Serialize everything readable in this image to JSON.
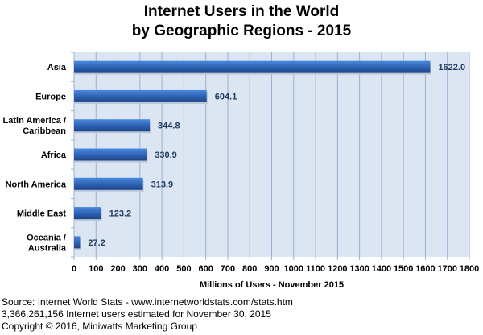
{
  "chart_data": {
    "type": "bar",
    "orientation": "horizontal",
    "title": "Internet Users in the World",
    "subtitle": "by Geographic Regions - 2015",
    "categories": [
      "Asia",
      "Europe",
      "Latin America / Caribbean",
      "Africa",
      "North America",
      "Middle East",
      "Oceania  / Australia"
    ],
    "category_lines": [
      [
        "Asia"
      ],
      [
        "Europe"
      ],
      [
        "Latin America /",
        "Caribbean"
      ],
      [
        "Africa"
      ],
      [
        "North America"
      ],
      [
        "Middle East"
      ],
      [
        "Oceania  /",
        "Australia"
      ]
    ],
    "values": [
      1622.0,
      604.1,
      344.8,
      330.9,
      313.9,
      123.2,
      27.2
    ],
    "value_labels": [
      "1622.0",
      "604.1",
      "344.8",
      "330.9",
      "313.9",
      "123.2",
      "27.2"
    ],
    "xlabel": "Millions of Users - November 2015",
    "ylabel": "",
    "xlim": [
      0,
      1800
    ],
    "xticks": [
      0,
      100,
      200,
      300,
      400,
      500,
      600,
      700,
      800,
      900,
      1000,
      1100,
      1200,
      1300,
      1400,
      1500,
      1600,
      1700,
      1800
    ],
    "grid": true,
    "colors": {
      "bar": "#2f64b5",
      "bar_light": "#4a8ae0",
      "plot_bg": "#dce6f2",
      "grid": "#98b1d3",
      "label": "#1f3a5f"
    }
  },
  "footer": {
    "source": "Source: Internet World Stats - www.internetworldstats.com/stats.htm",
    "estimate": "3,366,261,156 Internet users estimated for November 30, 2015",
    "copyright": "Copyright © 2016, Miniwatts Marketing Group"
  }
}
